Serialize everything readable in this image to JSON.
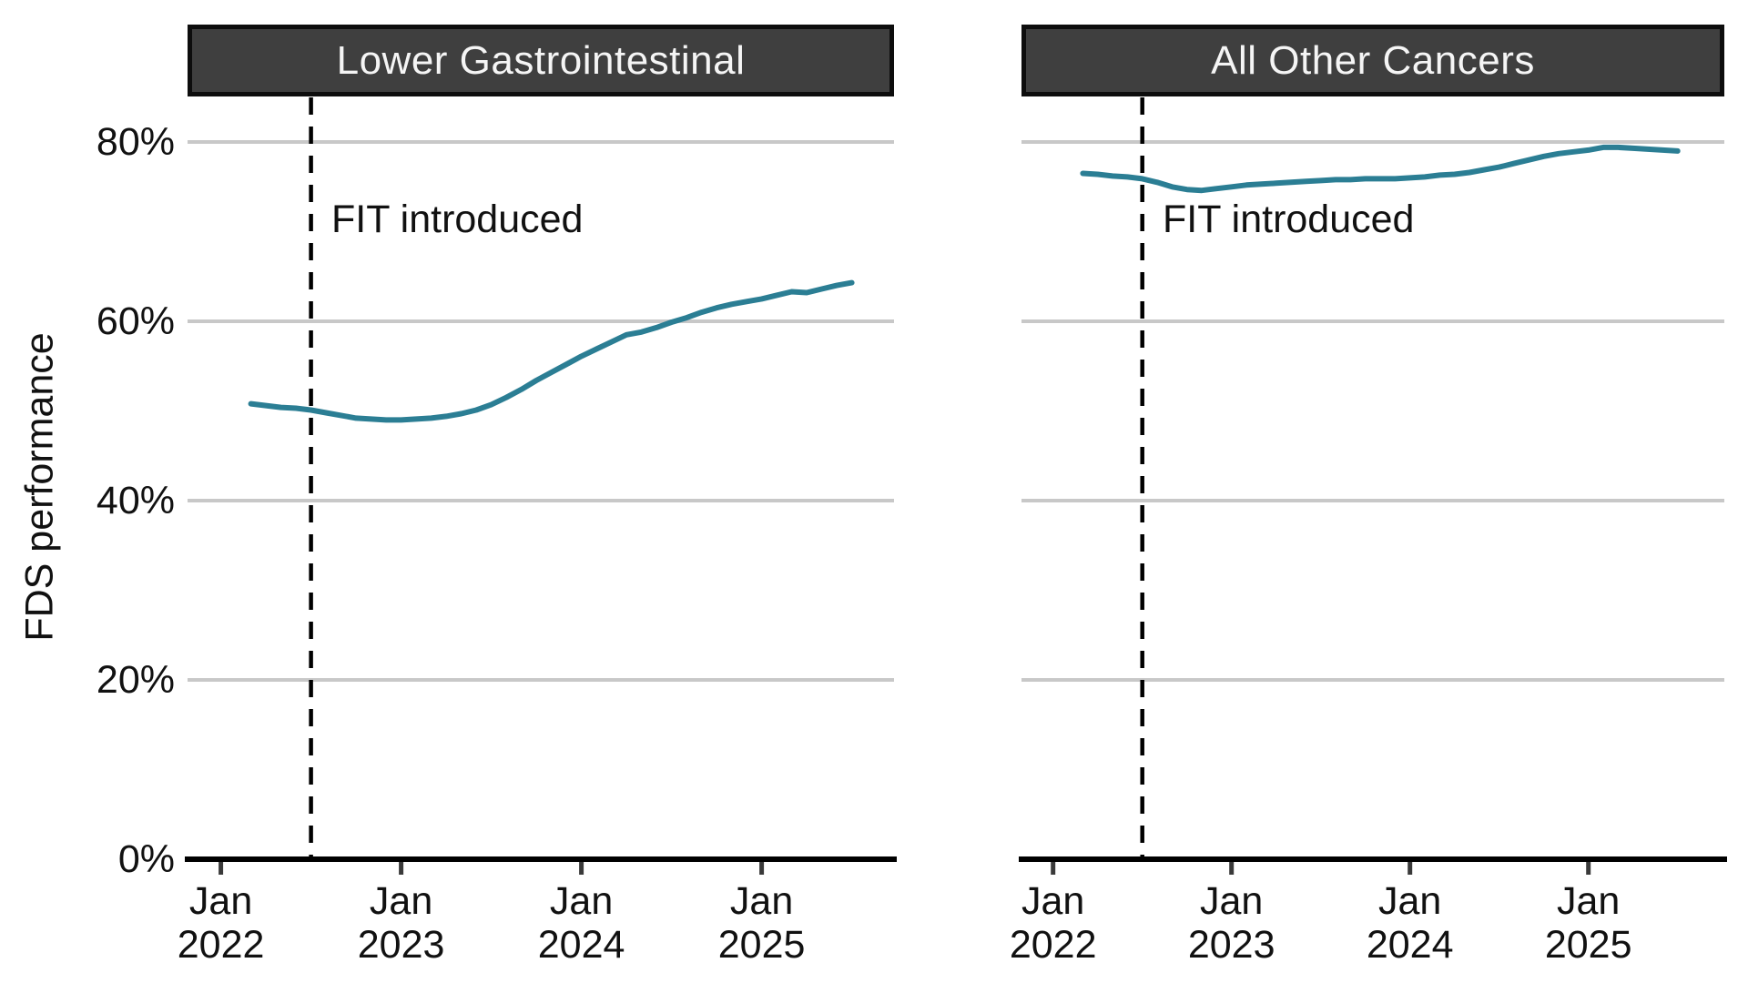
{
  "figure": {
    "ylabel": "FDS performance",
    "background": "#ffffff"
  },
  "colors": {
    "line": "#2b7e94",
    "grid": "#c8c8c8",
    "axis": "#000000",
    "tick": "#3a3a3a",
    "vline": "#000000",
    "text": "#111111",
    "header_bg": "#3f3f3f",
    "header_border": "#0d0d0d",
    "header_text": "#f5f5f5"
  },
  "chart_data": {
    "type": "line",
    "layout": "two-panel faceted line chart, shared y axis",
    "ylabel": "FDS performance",
    "ylim": [
      0,
      85
    ],
    "grid": "horizontal only",
    "legend": "none",
    "y_ticks": [
      {
        "value": 0,
        "label": "0%"
      },
      {
        "value": 20,
        "label": "20%"
      },
      {
        "value": 40,
        "label": "40%"
      },
      {
        "value": 60,
        "label": "60%"
      },
      {
        "value": 80,
        "label": "80%"
      }
    ],
    "x_ticks": [
      {
        "year": 2022,
        "line1": "Jan",
        "line2": "2022"
      },
      {
        "year": 2023,
        "line1": "Jan",
        "line2": "2023"
      },
      {
        "year": 2024,
        "line1": "Jan",
        "line2": "2024"
      },
      {
        "year": 2025,
        "line1": "Jan",
        "line2": "2025"
      }
    ],
    "x_domain_years": [
      2021.82,
      2025.74
    ],
    "vline": {
      "x": 2022.5,
      "label": "FIT introduced"
    },
    "series_frequency": "monthly",
    "series_start": {
      "year": 2022,
      "month": 3,
      "label": "Mar 2022"
    },
    "series_end": {
      "year": 2025,
      "month": 7,
      "label": "Jul 2025"
    },
    "panels": [
      {
        "title": "Lower Gastrointestinal",
        "y_percent": [
          50.8,
          50.6,
          50.4,
          50.3,
          50.1,
          49.8,
          49.5,
          49.2,
          49.1,
          49.0,
          49.0,
          49.1,
          49.2,
          49.4,
          49.7,
          50.1,
          50.7,
          51.5,
          52.4,
          53.4,
          54.3,
          55.2,
          56.1,
          56.9,
          57.7,
          58.5,
          58.8,
          59.3,
          59.9,
          60.4,
          61.0,
          61.5,
          61.9,
          62.2,
          62.5,
          62.9,
          63.3,
          63.2,
          63.6,
          64.0,
          64.3
        ]
      },
      {
        "title": "All Other Cancers",
        "y_percent": [
          76.5,
          76.4,
          76.2,
          76.1,
          75.9,
          75.5,
          75.0,
          74.7,
          74.6,
          74.8,
          75.0,
          75.2,
          75.3,
          75.4,
          75.5,
          75.6,
          75.7,
          75.8,
          75.8,
          75.9,
          75.9,
          75.9,
          76.0,
          76.1,
          76.3,
          76.4,
          76.6,
          76.9,
          77.2,
          77.6,
          78.0,
          78.4,
          78.7,
          78.9,
          79.1,
          79.4,
          79.4,
          79.3,
          79.2,
          79.1,
          79.0
        ]
      }
    ]
  }
}
